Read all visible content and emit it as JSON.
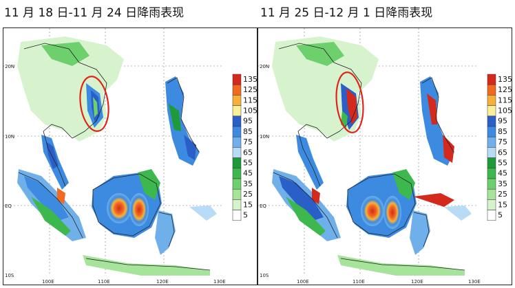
{
  "panels": [
    {
      "title": "11 月 18 日-11 月 24 日降雨表现"
    },
    {
      "title": "11 月 25 日-12 月 1 日降雨表现"
    }
  ],
  "axes": {
    "lat_ticks": [
      "20N",
      "10N",
      "EQ",
      "10S"
    ],
    "lon_ticks": [
      "100E",
      "110E",
      "120E",
      "130E"
    ]
  },
  "legend": {
    "levels": [
      "135",
      "125",
      "115",
      "105",
      "95",
      "85",
      "75",
      "65",
      "55",
      "45",
      "35",
      "25",
      "15",
      "5"
    ],
    "colors": [
      "#d42a1e",
      "#f06a22",
      "#f7b13a",
      "#fbf09a",
      "#2a5fc8",
      "#3d8be0",
      "#6fb0ea",
      "#b9dcf6",
      "#1f9a3a",
      "#3db84f",
      "#6dd06d",
      "#a5e49a",
      "#d6f3cd",
      "#ffffff"
    ]
  },
  "highlight_color": "#e0241a"
}
